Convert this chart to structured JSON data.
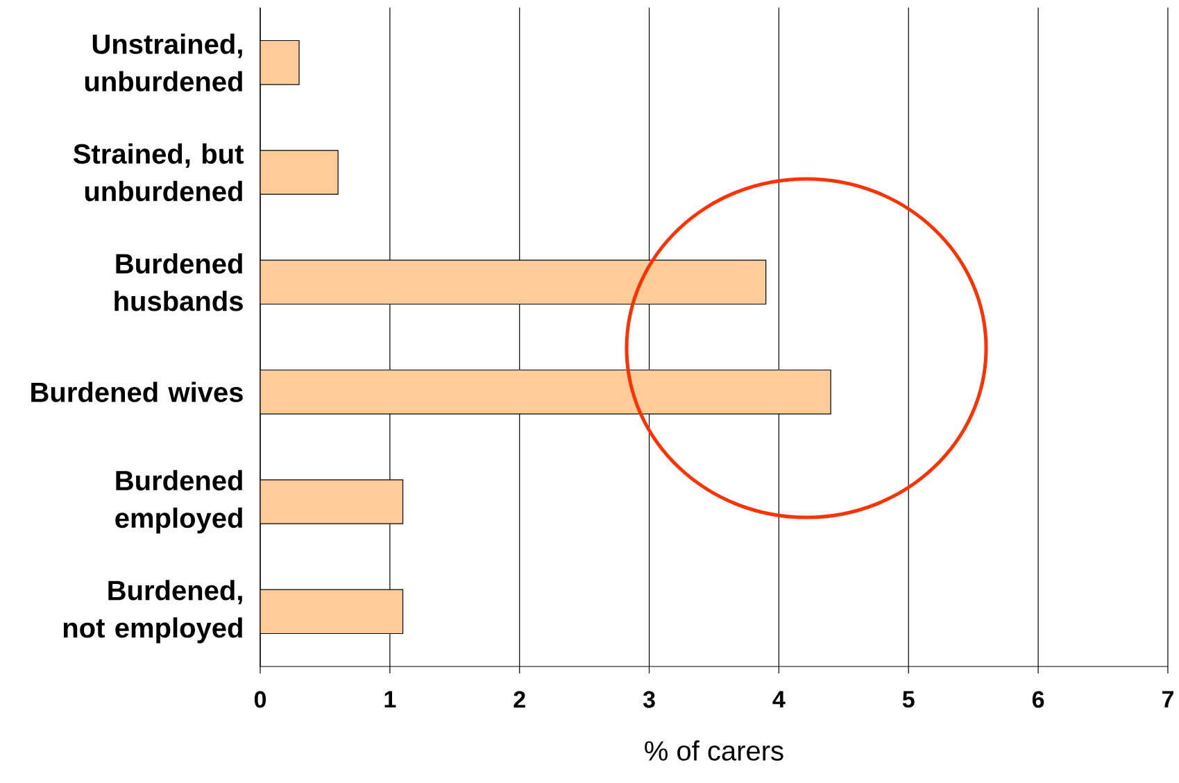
{
  "chart_data": {
    "type": "bar",
    "orientation": "horizontal",
    "categories": [
      "Unstrained, unburdened",
      "Strained, but unburdened",
      "Burdened husbands",
      "Burdened wives",
      "Burdened employed",
      "Burdened, not employed"
    ],
    "values": [
      0.3,
      0.6,
      3.9,
      4.4,
      1.1,
      1.1
    ],
    "color": "#ffcc99",
    "xlabel": "% of carers",
    "xlim": [
      0,
      7
    ],
    "xticks": [
      0,
      1,
      2,
      3,
      4,
      5,
      6,
      7
    ],
    "grid": "x"
  }
}
